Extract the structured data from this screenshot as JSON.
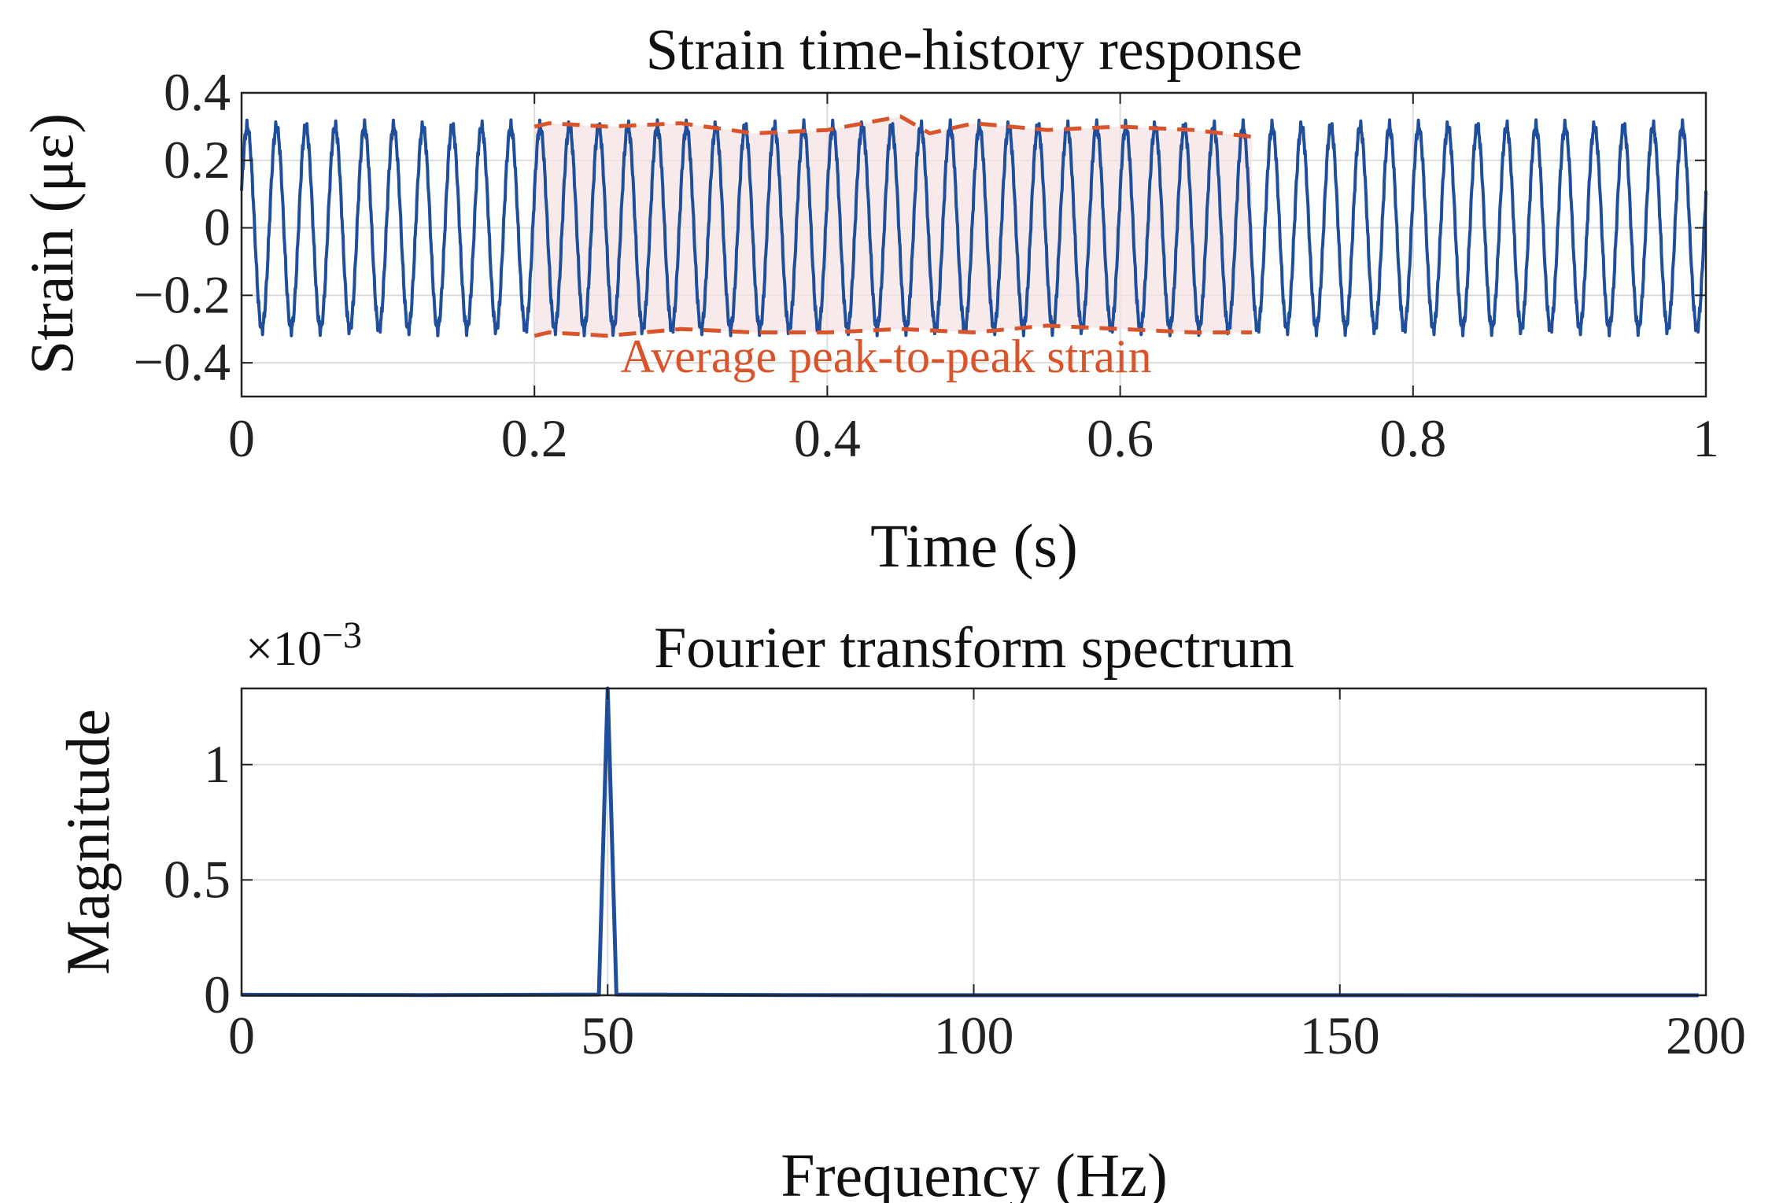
{
  "chart_data": [
    {
      "type": "line",
      "title": "Strain time-history response",
      "xlabel": "Time (s)",
      "ylabel": "Strain (με)",
      "xlim": [
        0,
        1
      ],
      "ylim": [
        -0.5,
        0.4
      ],
      "grid": true,
      "xticks": [
        0,
        0.2,
        0.4,
        0.6,
        0.8,
        1
      ],
      "xtick_labels": [
        "0",
        "0.2",
        "0.4",
        "0.6",
        "0.8",
        "1"
      ],
      "yticks": [
        0.4,
        0.2,
        0,
        -0.2,
        -0.4
      ],
      "ytick_labels": [
        "0.4",
        "0.2",
        "0",
        "−0.2",
        "−0.4"
      ],
      "series": [
        {
          "name": "strain",
          "color": "#1f4e9c",
          "frequency_hz": 50,
          "amplitude": 0.3,
          "noise": "small high-frequency ripple",
          "t_range": [
            0,
            1
          ]
        }
      ],
      "highlight": {
        "label": "Average peak-to-peak strain",
        "t_range": [
          0.2,
          0.69
        ],
        "fill_color": "#f6e3e3",
        "line_color": "#d9542b",
        "upper_envelope": {
          "t": [
            0.2,
            0.21,
            0.25,
            0.3,
            0.35,
            0.4,
            0.45,
            0.47,
            0.5,
            0.55,
            0.6,
            0.65,
            0.69
          ],
          "v": [
            0.3,
            0.31,
            0.3,
            0.31,
            0.28,
            0.29,
            0.33,
            0.28,
            0.31,
            0.29,
            0.3,
            0.29,
            0.27
          ]
        },
        "lower_envelope": {
          "t": [
            0.2,
            0.21,
            0.25,
            0.3,
            0.35,
            0.4,
            0.45,
            0.5,
            0.55,
            0.6,
            0.65,
            0.69
          ],
          "v": [
            -0.32,
            -0.31,
            -0.32,
            -0.3,
            -0.31,
            -0.31,
            -0.3,
            -0.31,
            -0.29,
            -0.3,
            -0.31,
            -0.31
          ]
        }
      }
    },
    {
      "type": "line",
      "title": "Fourier transform spectrum",
      "xlabel": "Frequency (Hz)",
      "ylabel": "Magnitude",
      "exponent_label": "×10",
      "exponent_power": "−3",
      "xlim": [
        0,
        200
      ],
      "ylim": [
        0,
        1.33
      ],
      "grid": true,
      "xticks": [
        0,
        50,
        100,
        150,
        200
      ],
      "xtick_labels": [
        "0",
        "50",
        "100",
        "150",
        "200"
      ],
      "yticks": [
        0,
        0.5,
        1
      ],
      "ytick_labels": [
        "0",
        "0.5",
        "1"
      ],
      "series": [
        {
          "name": "spectrum",
          "color": "#1f4e9c",
          "x": [
            0,
            25,
            48.8,
            50,
            51.2,
            75,
            100,
            150,
            199
          ],
          "y": [
            0.002,
            0.001,
            0.003,
            1.33,
            0.003,
            0.001,
            0.0005,
            0.0003,
            0.0001
          ]
        }
      ]
    }
  ]
}
